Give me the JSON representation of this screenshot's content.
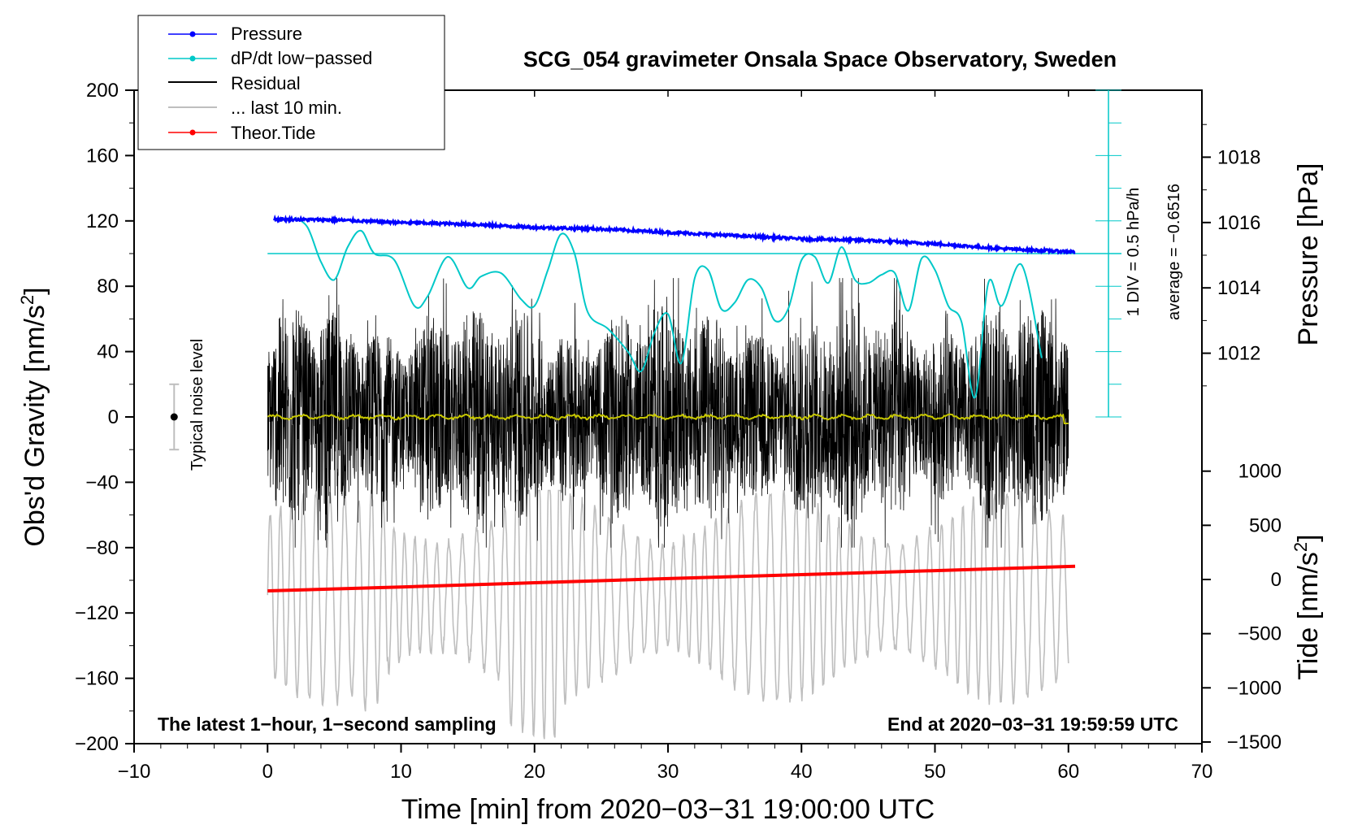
{
  "chart_data": {
    "type": "line",
    "title": "SCG_054 gravimeter Onsala Space Observatory, Sweden",
    "xlabel": "Time [min] from 2020−03−31 19:00:00 UTC",
    "ylabel_left_text": "Obs'd Gravity [nm/s",
    "ylabel_left_sup": "2",
    "ylabel_left_close": "]",
    "ylabel_pressure": "Pressure [hPa]",
    "ylabel_tide_text": "Tide [nm/s",
    "ylabel_tide_sup": "2",
    "ylabel_tide_close": "]",
    "xlim": [
      -10,
      70
    ],
    "ylim": [
      -200,
      200
    ],
    "pressure_ylim": [
      1010,
      1020
    ],
    "tide_ylim": [
      -1500,
      1500
    ],
    "x_ticks": [
      "−10",
      "0",
      "10",
      "20",
      "30",
      "40",
      "50",
      "60",
      "70"
    ],
    "x_tick_values": [
      -10,
      0,
      10,
      20,
      30,
      40,
      50,
      60,
      70
    ],
    "y_ticks": [
      "200",
      "160",
      "120",
      "80",
      "40",
      "0",
      "−40",
      "−80",
      "−120",
      "−160",
      "−200"
    ],
    "y_tick_values": [
      200,
      160,
      120,
      80,
      40,
      0,
      -40,
      -80,
      -120,
      -160,
      -200
    ],
    "pressure_ticks": [
      "1018",
      "1016",
      "1014",
      "1012"
    ],
    "pressure_tick_values": [
      1018,
      1016,
      1014,
      1012
    ],
    "tide_ticks": [
      "1000",
      "500",
      "0",
      "−500",
      "−1000",
      "−1500"
    ],
    "tide_tick_values": [
      1000,
      500,
      0,
      -500,
      -1000,
      -1500
    ],
    "legend": [
      {
        "label": "Pressure",
        "color": "#0000ff",
        "marker": true
      },
      {
        "label": "dP/dt low−passed",
        "color": "#00c8c8",
        "marker": true
      },
      {
        "label": "Residual",
        "color": "#000000",
        "marker": false
      },
      {
        "label": "... last 10 min.",
        "color": "#bebebe",
        "marker": false
      },
      {
        "label": "Theor.Tide",
        "color": "#ff0000",
        "marker": true
      }
    ],
    "series": [
      {
        "name": "Pressure",
        "color": "#0000ff",
        "axis": "pressure",
        "x": [
          0.5,
          5,
          10,
          15,
          20,
          25,
          30,
          35,
          40,
          45,
          50,
          55,
          60.5
        ],
        "values": [
          1016.1,
          1016.08,
          1016.0,
          1015.95,
          1015.85,
          1015.8,
          1015.7,
          1015.6,
          1015.5,
          1015.45,
          1015.35,
          1015.2,
          1015.1
        ]
      },
      {
        "name": "dP/dt low−passed",
        "color": "#00c8c8",
        "axis": "dpdt_scale",
        "x": [
          2,
          3,
          4,
          5,
          6,
          7,
          8,
          9.5,
          11,
          12,
          13.5,
          15,
          16,
          17.5,
          19,
          20,
          21,
          22,
          23,
          24,
          25.5,
          27,
          28,
          29,
          30,
          31,
          32,
          33,
          34,
          35,
          36,
          37,
          38,
          39,
          40,
          41,
          42,
          43,
          44,
          45,
          46,
          47,
          48,
          49,
          50,
          51,
          52,
          53,
          54,
          55,
          56.5,
          58
        ],
        "values": [
          122,
          116,
          95,
          84,
          104,
          114,
          100,
          96,
          68,
          74,
          98,
          79,
          86,
          88,
          72,
          68,
          90,
          112,
          100,
          64,
          54,
          40,
          28,
          52,
          63,
          33,
          85,
          90,
          66,
          70,
          84,
          79,
          59,
          66,
          96,
          98,
          82,
          104,
          84,
          82,
          87,
          88,
          65,
          97,
          90,
          68,
          58,
          12,
          82,
          68,
          93,
          36
        ]
      },
      {
        "name": "Residual",
        "color": "#000000",
        "axis": "gravity",
        "envelope_min": -80,
        "envelope_max": 85,
        "x": [
          0,
          60
        ],
        "values": [
          0,
          0
        ]
      },
      {
        "name": "... last 10 min.",
        "color": "#bebebe",
        "axis": "gravity",
        "envelope_min": -200,
        "envelope_max": -45,
        "x": [
          0,
          60
        ],
        "values": [
          -110,
          -110
        ]
      },
      {
        "name": "Theor.Tide",
        "color": "#ff0000",
        "axis": "tide",
        "x": [
          0,
          10,
          20,
          30,
          40,
          50,
          60.5
        ],
        "values": [
          -105,
          -69,
          -30,
          8,
          45,
          82,
          122
        ]
      },
      {
        "name": "Mean residual",
        "color": "#c8c800",
        "axis": "gravity",
        "x": [
          0,
          10,
          20,
          30,
          40,
          50,
          59.5,
          60
        ],
        "values": [
          1,
          0,
          1,
          0,
          0,
          0,
          0,
          -4
        ]
      }
    ],
    "dpdt_reference": {
      "level": 100,
      "scale_text": "1 DIV = 0.5 hPa/h",
      "average_text": "average = −0.6516"
    },
    "noise_bar": {
      "label": "Typical noise level",
      "x": -7,
      "center": 0,
      "half_range": 20
    },
    "annotation_left": "The latest 1−hour, 1−second sampling",
    "annotation_right": "End at 2020−03−31 19:59:59 UTC"
  }
}
